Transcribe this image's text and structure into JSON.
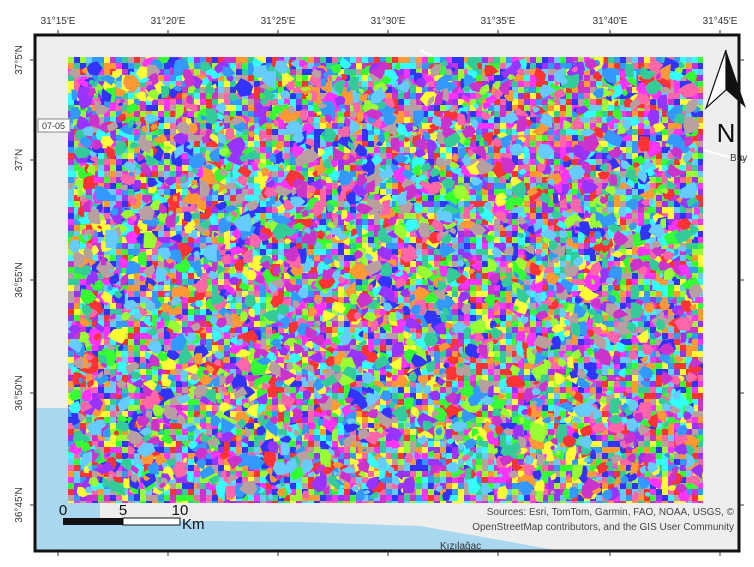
{
  "map": {
    "longitude_labels": [
      "31°15'E",
      "31°20'E",
      "31°25'E",
      "31°30'E",
      "31°35'E",
      "31°40'E",
      "31°45'E"
    ],
    "latitude_labels": [
      "37°5'N",
      "37°N",
      "36°55'N",
      "36°50'N",
      "36°45'N"
    ],
    "scale_bar": {
      "labels": [
        "0",
        "5",
        "10"
      ],
      "unit": "Km"
    },
    "north_arrow": "N",
    "road_label": "07-05",
    "place_labels": [
      "Büy",
      "Kızılağaç"
    ],
    "attribution": [
      "Sources: Esri, TomTom, Garmin, FAO, NOAA, USGS, ©",
      "OpenStreetMap contributors, and the GIS User Community"
    ]
  }
}
